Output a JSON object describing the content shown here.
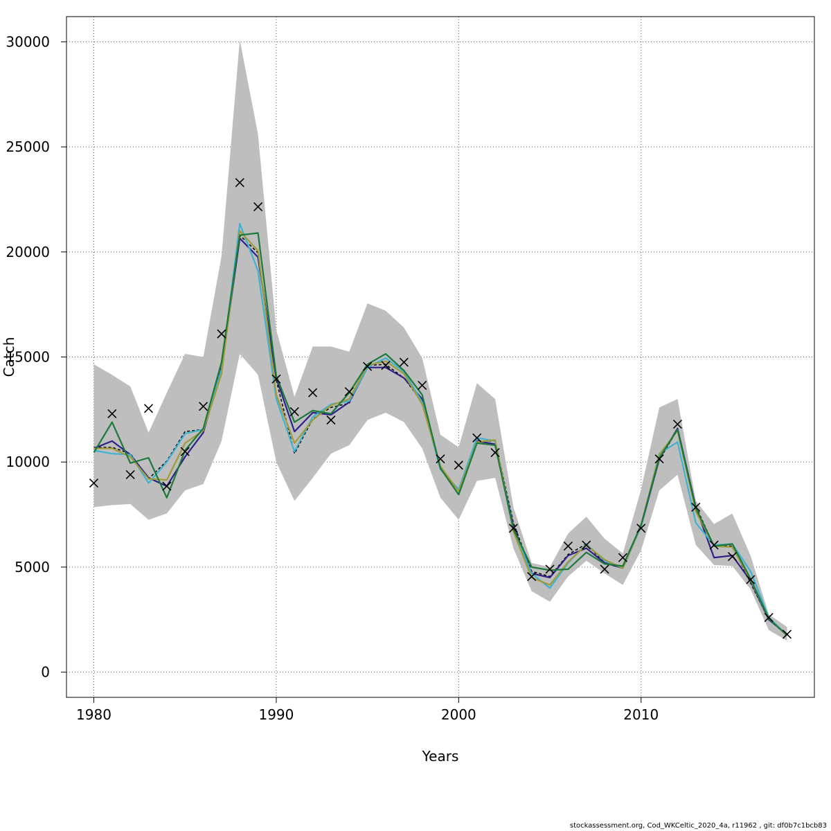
{
  "chart_data": {
    "type": "line",
    "xlabel": "Years",
    "ylabel": "Catch",
    "xlim": [
      1978.5,
      2019.5
    ],
    "ylim": [
      -1200,
      31200
    ],
    "x_ticks": [
      1980,
      1990,
      2000,
      2010
    ],
    "y_ticks": [
      0,
      5000,
      10000,
      15000,
      20000,
      25000,
      30000
    ],
    "grid": true,
    "legend": "none",
    "colors": {
      "band": "#bebebe",
      "observed_marker": "#000000",
      "series": [
        "#000000",
        "#2e1f8a",
        "#3fb2d0",
        "#9f9a3a",
        "#1b7a3a"
      ]
    },
    "x": [
      1980,
      1981,
      1982,
      1983,
      1984,
      1985,
      1986,
      1987,
      1988,
      1989,
      1990,
      1991,
      1992,
      1993,
      1994,
      1995,
      1996,
      1997,
      1998,
      1999,
      2000,
      2001,
      2002,
      2003,
      2004,
      2005,
      2006,
      2007,
      2008,
      2009,
      2010,
      2011,
      2012,
      2013,
      2014,
      2015,
      2016,
      2017,
      2018
    ],
    "band_upper": [
      14650,
      14150,
      13600,
      11400,
      13300,
      15150,
      15000,
      19800,
      30100,
      25600,
      16300,
      13100,
      15500,
      15500,
      15250,
      17550,
      17200,
      16400,
      14950,
      11300,
      10700,
      13750,
      13000,
      7850,
      5200,
      5000,
      6600,
      7400,
      6350,
      5650,
      8700,
      12600,
      13000,
      8150,
      7050,
      7550,
      5550,
      2750,
      2150
    ],
    "band_lower": [
      7850,
      7950,
      8000,
      7250,
      7550,
      8650,
      8950,
      11000,
      15150,
      14150,
      10000,
      8150,
      9250,
      10400,
      10800,
      12000,
      12350,
      11900,
      10650,
      8300,
      7250,
      9100,
      9250,
      5900,
      3850,
      3350,
      4550,
      5300,
      4700,
      4150,
      5800,
      8650,
      9400,
      6050,
      5100,
      5050,
      3950,
      2000,
      1500
    ],
    "observed": [
      9000,
      12300,
      9400,
      12550,
      8850,
      10500,
      12650,
      16100,
      23300,
      22150,
      13950,
      12400,
      13300,
      12000,
      13350,
      14550,
      14600,
      14750,
      13650,
      10150,
      9850,
      11150,
      10450,
      6850,
      4550,
      4900,
      6000,
      6050,
      4900,
      5450,
      6850,
      10150,
      11800,
      7850,
      6050,
      5500,
      4400,
      2600,
      1800
    ],
    "series": [
      {
        "values": [
          10700,
          10700,
          10400,
          9200,
          10050,
          11450,
          11550,
          14650,
          20800,
          19950,
          13900,
          10400,
          12050,
          12600,
          12800,
          14600,
          14650,
          14000,
          12850,
          9700,
          8600,
          11000,
          11000,
          7100,
          4800,
          4550,
          5600,
          6100,
          5200,
          5000,
          7050,
          10100,
          11550,
          7900,
          6000,
          6000,
          4250,
          2500,
          1750
        ]
      },
      {
        "values": [
          10650,
          11000,
          10350,
          9250,
          8850,
          10250,
          11400,
          14450,
          20650,
          19750,
          14000,
          11450,
          12350,
          12250,
          12850,
          14500,
          14500,
          14000,
          13000,
          9700,
          8650,
          11000,
          10850,
          6950,
          4700,
          4500,
          5550,
          5900,
          5200,
          4950,
          6950,
          10150,
          11600,
          7850,
          5450,
          5550,
          4350,
          2500,
          1800
        ]
      },
      {
        "values": [
          10550,
          10400,
          10350,
          9000,
          10000,
          11350,
          11550,
          14400,
          21350,
          19100,
          13000,
          10500,
          12150,
          12750,
          12900,
          14500,
          14950,
          14300,
          12850,
          9650,
          8700,
          11150,
          11000,
          6800,
          4700,
          4000,
          5200,
          6100,
          5300,
          4950,
          6950,
          10400,
          10950,
          7100,
          6050,
          6100,
          4800,
          2600,
          1750
        ]
      },
      {
        "values": [
          10650,
          10650,
          10250,
          9200,
          9150,
          10900,
          11500,
          14200,
          21000,
          20050,
          13200,
          10900,
          12000,
          12700,
          13000,
          14600,
          14800,
          14200,
          12750,
          9800,
          8600,
          10950,
          11050,
          6700,
          4500,
          4150,
          5250,
          6050,
          5350,
          4950,
          7000,
          10350,
          11500,
          7650,
          6000,
          5950,
          4400,
          2550,
          1750
        ]
      },
      {
        "values": [
          10450,
          11900,
          9950,
          10200,
          8300,
          10550,
          11600,
          14750,
          20800,
          20900,
          14100,
          11900,
          12450,
          12300,
          13300,
          14650,
          15150,
          14350,
          13200,
          9700,
          8450,
          10900,
          10800,
          6800,
          5000,
          4850,
          4900,
          5700,
          5150,
          5050,
          7000,
          10200,
          11550,
          7800,
          6000,
          6100,
          4450,
          2550,
          1750
        ]
      }
    ]
  },
  "footer": {
    "text": "stockassessment.org, Cod_WKCeltic_2020_4a, r11962 , git: df0b7c1bcb83"
  }
}
